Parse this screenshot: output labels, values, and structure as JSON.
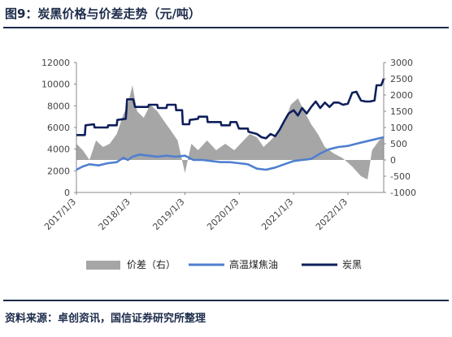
{
  "figure": {
    "title": "图9：炭黑价格与价差走势（元/吨）",
    "source": "资料来源：卓创资讯，国信证券研究所整理"
  },
  "chart_data": {
    "type": "line",
    "x_tick_labels": [
      "2017/1/3",
      "2018/1/3",
      "2019/1/3",
      "2020/1/3",
      "2021/1/3",
      "2022/1/3"
    ],
    "x_range": [
      "2017-01-03",
      "2022-09-01"
    ],
    "y_left": {
      "ticks": [
        0,
        2000,
        4000,
        6000,
        8000,
        10000,
        12000
      ],
      "range": [
        0,
        12000
      ]
    },
    "y_right": {
      "ticks": [
        -1000,
        -500,
        0,
        500,
        1000,
        1500,
        2000,
        2500,
        3000
      ],
      "range": [
        -1000,
        3000
      ]
    },
    "legend_position": "bottom",
    "grid": false,
    "series": [
      {
        "name": "价差（右）",
        "type": "area",
        "axis": "right",
        "color": "#a6a6a6",
        "points": [
          [
            "2017-01-03",
            500
          ],
          [
            "2017-02-15",
            300
          ],
          [
            "2017-04-01",
            0
          ],
          [
            "2017-05-15",
            600
          ],
          [
            "2017-07-01",
            400
          ],
          [
            "2017-08-15",
            500
          ],
          [
            "2017-10-01",
            800
          ],
          [
            "2017-11-15",
            1400
          ],
          [
            "2017-12-15",
            1700
          ],
          [
            "2018-01-15",
            2300
          ],
          [
            "2018-02-15",
            1500
          ],
          [
            "2018-04-01",
            1300
          ],
          [
            "2018-05-15",
            1700
          ],
          [
            "2018-07-01",
            1500
          ],
          [
            "2018-08-15",
            1200
          ],
          [
            "2018-10-01",
            900
          ],
          [
            "2018-11-15",
            600
          ],
          [
            "2019-01-03",
            -400
          ],
          [
            "2019-02-15",
            500
          ],
          [
            "2019-04-01",
            300
          ],
          [
            "2019-06-01",
            600
          ],
          [
            "2019-08-01",
            300
          ],
          [
            "2019-10-01",
            500
          ],
          [
            "2019-12-01",
            300
          ],
          [
            "2020-02-01",
            600
          ],
          [
            "2020-03-15",
            800
          ],
          [
            "2020-05-01",
            700
          ],
          [
            "2020-06-15",
            400
          ],
          [
            "2020-08-01",
            600
          ],
          [
            "2020-10-01",
            900
          ],
          [
            "2020-11-15",
            1300
          ],
          [
            "2020-12-15",
            1700
          ],
          [
            "2021-02-01",
            1900
          ],
          [
            "2021-03-15",
            1500
          ],
          [
            "2021-05-01",
            1100
          ],
          [
            "2021-06-15",
            800
          ],
          [
            "2021-08-01",
            400
          ],
          [
            "2021-10-01",
            200
          ],
          [
            "2021-12-01",
            50
          ],
          [
            "2022-02-01",
            -200
          ],
          [
            "2022-04-01",
            -500
          ],
          [
            "2022-05-15",
            -600
          ],
          [
            "2022-06-15",
            300
          ],
          [
            "2022-08-01",
            600
          ],
          [
            "2022-09-01",
            700
          ]
        ]
      },
      {
        "name": "高温煤焦油",
        "type": "line",
        "axis": "left",
        "color": "#4f7fcf",
        "points": [
          [
            "2017-01-03",
            2100
          ],
          [
            "2017-02-15",
            2400
          ],
          [
            "2017-04-01",
            2600
          ],
          [
            "2017-06-01",
            2500
          ],
          [
            "2017-08-01",
            2700
          ],
          [
            "2017-10-01",
            2800
          ],
          [
            "2017-11-15",
            3200
          ],
          [
            "2017-12-15",
            3000
          ],
          [
            "2018-01-15",
            3300
          ],
          [
            "2018-03-01",
            3500
          ],
          [
            "2018-05-01",
            3400
          ],
          [
            "2018-07-01",
            3300
          ],
          [
            "2018-09-01",
            3400
          ],
          [
            "2018-11-01",
            3300
          ],
          [
            "2019-01-03",
            3400
          ],
          [
            "2019-03-01",
            3000
          ],
          [
            "2019-05-01",
            3000
          ],
          [
            "2019-07-01",
            2900
          ],
          [
            "2019-09-01",
            2800
          ],
          [
            "2019-11-01",
            2800
          ],
          [
            "2020-01-03",
            2700
          ],
          [
            "2020-03-01",
            2600
          ],
          [
            "2020-05-01",
            2200
          ],
          [
            "2020-07-01",
            2100
          ],
          [
            "2020-09-01",
            2300
          ],
          [
            "2020-11-01",
            2600
          ],
          [
            "2021-01-03",
            2900
          ],
          [
            "2021-03-01",
            3000
          ],
          [
            "2021-05-01",
            3100
          ],
          [
            "2021-07-01",
            3600
          ],
          [
            "2021-09-01",
            4000
          ],
          [
            "2021-11-01",
            4200
          ],
          [
            "2022-01-03",
            4300
          ],
          [
            "2022-03-01",
            4500
          ],
          [
            "2022-05-01",
            4700
          ],
          [
            "2022-07-01",
            4900
          ],
          [
            "2022-09-01",
            5100
          ]
        ]
      },
      {
        "name": "炭黑",
        "type": "line",
        "axis": "left",
        "color": "#0e1f5b",
        "points": [
          [
            "2017-01-03",
            5300
          ],
          [
            "2017-03-01",
            5300
          ],
          [
            "2017-03-05",
            6200
          ],
          [
            "2017-05-01",
            6300
          ],
          [
            "2017-05-05",
            6000
          ],
          [
            "2017-08-01",
            6000
          ],
          [
            "2017-08-05",
            6200
          ],
          [
            "2017-10-01",
            6200
          ],
          [
            "2017-10-05",
            6700
          ],
          [
            "2017-12-01",
            6800
          ],
          [
            "2017-12-10",
            8600
          ],
          [
            "2018-01-20",
            8600
          ],
          [
            "2018-02-01",
            7900
          ],
          [
            "2018-05-01",
            7900
          ],
          [
            "2018-05-05",
            8100
          ],
          [
            "2018-07-01",
            8100
          ],
          [
            "2018-07-05",
            7800
          ],
          [
            "2018-09-01",
            7800
          ],
          [
            "2018-09-05",
            8100
          ],
          [
            "2018-11-01",
            8100
          ],
          [
            "2018-11-05",
            7600
          ],
          [
            "2018-12-15",
            7600
          ],
          [
            "2018-12-20",
            6300
          ],
          [
            "2019-02-01",
            6300
          ],
          [
            "2019-02-05",
            6700
          ],
          [
            "2019-04-01",
            6800
          ],
          [
            "2019-04-05",
            7000
          ],
          [
            "2019-06-01",
            7000
          ],
          [
            "2019-06-05",
            6500
          ],
          [
            "2019-09-01",
            6500
          ],
          [
            "2019-09-05",
            6200
          ],
          [
            "2019-11-01",
            6200
          ],
          [
            "2019-11-05",
            6500
          ],
          [
            "2019-12-15",
            6500
          ],
          [
            "2020-01-01",
            5900
          ],
          [
            "2020-03-01",
            5900
          ],
          [
            "2020-03-05",
            5600
          ],
          [
            "2020-05-01",
            5400
          ],
          [
            "2020-06-01",
            5100
          ],
          [
            "2020-07-01",
            5000
          ],
          [
            "2020-08-01",
            5400
          ],
          [
            "2020-09-01",
            5200
          ],
          [
            "2020-10-01",
            5800
          ],
          [
            "2020-11-01",
            6600
          ],
          [
            "2020-12-01",
            7300
          ],
          [
            "2021-01-03",
            7600
          ],
          [
            "2021-02-01",
            7100
          ],
          [
            "2021-03-01",
            7800
          ],
          [
            "2021-04-01",
            7300
          ],
          [
            "2021-05-01",
            7900
          ],
          [
            "2021-06-01",
            8400
          ],
          [
            "2021-07-01",
            7800
          ],
          [
            "2021-08-01",
            8300
          ],
          [
            "2021-09-01",
            7900
          ],
          [
            "2021-10-01",
            8300
          ],
          [
            "2021-11-01",
            8300
          ],
          [
            "2021-12-01",
            8100
          ],
          [
            "2022-01-03",
            8200
          ],
          [
            "2022-02-01",
            9200
          ],
          [
            "2022-03-01",
            9300
          ],
          [
            "2022-04-01",
            8500
          ],
          [
            "2022-05-01",
            8400
          ],
          [
            "2022-06-01",
            8400
          ],
          [
            "2022-07-01",
            8500
          ],
          [
            "2022-07-15",
            9900
          ],
          [
            "2022-08-15",
            9900
          ],
          [
            "2022-09-01",
            10500
          ]
        ]
      }
    ]
  }
}
